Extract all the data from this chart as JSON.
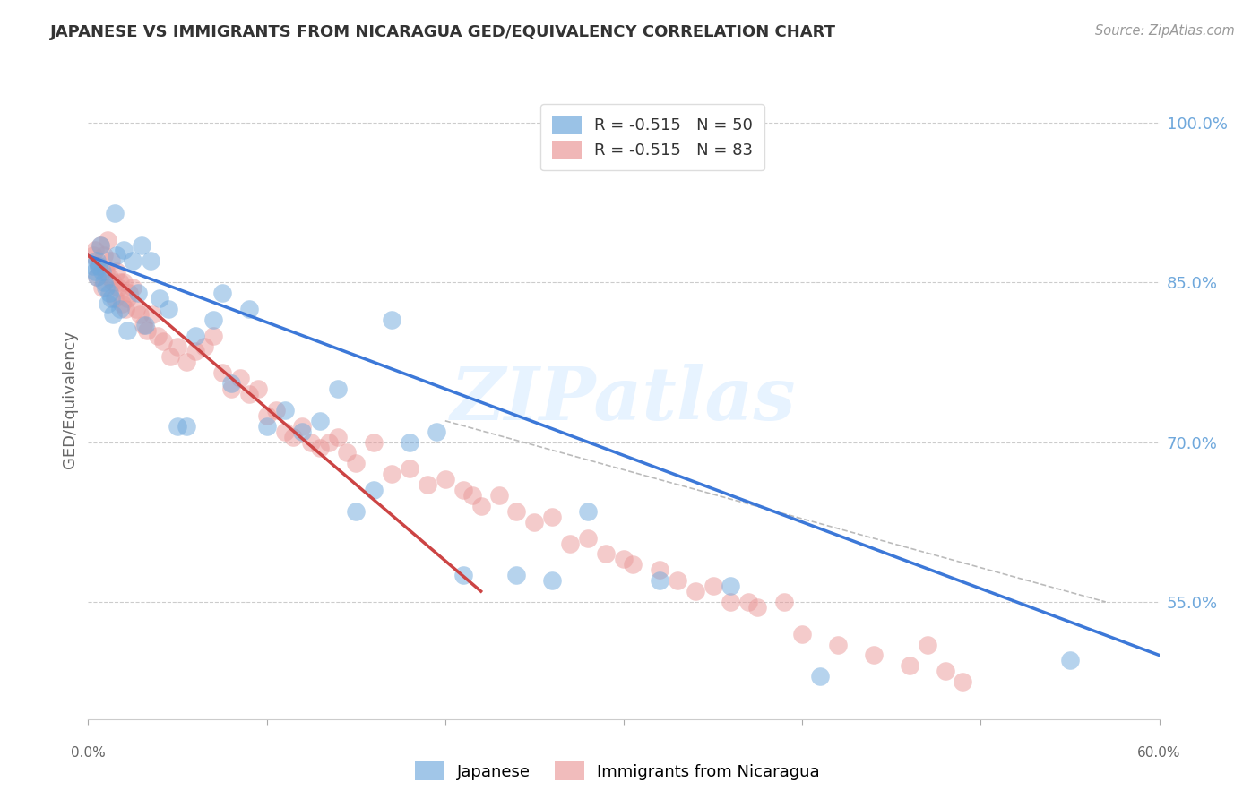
{
  "title": "JAPANESE VS IMMIGRANTS FROM NICARAGUA GED/EQUIVALENCY CORRELATION CHART",
  "source": "Source: ZipAtlas.com",
  "ylabel": "GED/Equivalency",
  "xmin": 0.0,
  "xmax": 60.0,
  "ymin": 44.0,
  "ymax": 104.0,
  "ytick_vals": [
    55.0,
    70.0,
    85.0,
    100.0
  ],
  "legend_blue_r": "R = -0.515",
  "legend_blue_n": "N = 50",
  "legend_pink_r": "R = -0.515",
  "legend_pink_n": "N = 83",
  "blue_color": "#6fa8dc",
  "pink_color": "#ea9999",
  "trendline_blue_color": "#3c78d8",
  "trendline_pink_color": "#cc4444",
  "trendline_dashed_color": "#bbbbbb",
  "watermark": "ZIPatlas",
  "blue_label": "Japanese",
  "pink_label": "Immigrants from Nicaragua",
  "japanese_x": [
    0.3,
    0.4,
    0.5,
    0.5,
    0.6,
    0.7,
    0.8,
    0.9,
    1.0,
    1.1,
    1.2,
    1.3,
    1.4,
    1.5,
    1.6,
    1.8,
    2.0,
    2.2,
    2.5,
    2.8,
    3.0,
    3.2,
    3.5,
    4.0,
    4.5,
    5.0,
    5.5,
    6.0,
    7.0,
    7.5,
    8.0,
    9.0,
    10.0,
    11.0,
    12.0,
    13.0,
    14.0,
    15.0,
    16.0,
    17.0,
    18.0,
    19.5,
    21.0,
    24.0,
    26.0,
    28.0,
    32.0,
    36.0,
    41.0,
    55.0
  ],
  "japanese_y": [
    86.5,
    86.0,
    85.5,
    87.0,
    86.5,
    88.5,
    86.0,
    85.0,
    84.5,
    83.0,
    84.0,
    83.5,
    82.0,
    91.5,
    87.5,
    82.5,
    88.0,
    80.5,
    87.0,
    84.0,
    88.5,
    81.0,
    87.0,
    83.5,
    82.5,
    71.5,
    71.5,
    80.0,
    81.5,
    84.0,
    75.5,
    82.5,
    71.5,
    73.0,
    71.0,
    72.0,
    75.0,
    63.5,
    65.5,
    81.5,
    70.0,
    71.0,
    57.5,
    57.5,
    57.0,
    63.5,
    57.0,
    56.5,
    48.0,
    49.5
  ],
  "nicaragua_x": [
    0.3,
    0.4,
    0.5,
    0.6,
    0.7,
    0.8,
    0.9,
    1.0,
    1.1,
    1.2,
    1.3,
    1.4,
    1.5,
    1.6,
    1.7,
    1.8,
    1.9,
    2.0,
    2.1,
    2.2,
    2.3,
    2.5,
    2.7,
    2.9,
    3.1,
    3.3,
    3.6,
    3.9,
    4.2,
    4.6,
    5.0,
    5.5,
    6.0,
    6.5,
    7.0,
    7.5,
    8.0,
    8.5,
    9.0,
    9.5,
    10.0,
    10.5,
    11.0,
    11.5,
    12.0,
    12.5,
    13.0,
    13.5,
    14.0,
    14.5,
    15.0,
    16.0,
    17.0,
    18.0,
    19.0,
    20.0,
    21.0,
    22.0,
    23.0,
    24.0,
    25.0,
    26.0,
    27.0,
    28.0,
    29.0,
    30.5,
    32.0,
    34.0,
    36.0,
    37.5,
    39.0,
    21.5,
    30.0,
    35.0,
    37.0,
    40.0,
    42.0,
    44.0,
    46.0,
    47.0,
    48.0,
    49.0,
    33.0
  ],
  "nicaragua_y": [
    87.5,
    88.0,
    85.5,
    86.5,
    88.5,
    84.5,
    87.5,
    86.0,
    89.0,
    85.5,
    87.0,
    85.0,
    83.5,
    86.0,
    84.5,
    85.0,
    83.0,
    85.0,
    82.5,
    83.5,
    84.0,
    84.5,
    82.5,
    82.0,
    81.0,
    80.5,
    82.0,
    80.0,
    79.5,
    78.0,
    79.0,
    77.5,
    78.5,
    79.0,
    80.0,
    76.5,
    75.0,
    76.0,
    74.5,
    75.0,
    72.5,
    73.0,
    71.0,
    70.5,
    71.5,
    70.0,
    69.5,
    70.0,
    70.5,
    69.0,
    68.0,
    70.0,
    67.0,
    67.5,
    66.0,
    66.5,
    65.5,
    64.0,
    65.0,
    63.5,
    62.5,
    63.0,
    60.5,
    61.0,
    59.5,
    58.5,
    58.0,
    56.0,
    55.0,
    54.5,
    55.0,
    65.0,
    59.0,
    56.5,
    55.0,
    52.0,
    51.0,
    50.0,
    49.0,
    51.0,
    48.5,
    47.5,
    57.0
  ],
  "trendline_blue_x0": 0.0,
  "trendline_blue_y0": 87.5,
  "trendline_blue_x1": 60.0,
  "trendline_blue_y1": 50.0,
  "trendline_pink_x0": 0.0,
  "trendline_pink_y0": 87.5,
  "trendline_pink_x1": 22.0,
  "trendline_pink_y1": 56.0,
  "trendline_dash_x0": 20.0,
  "trendline_dash_y0": 72.0,
  "trendline_dash_x1": 57.0,
  "trendline_dash_y1": 55.0
}
